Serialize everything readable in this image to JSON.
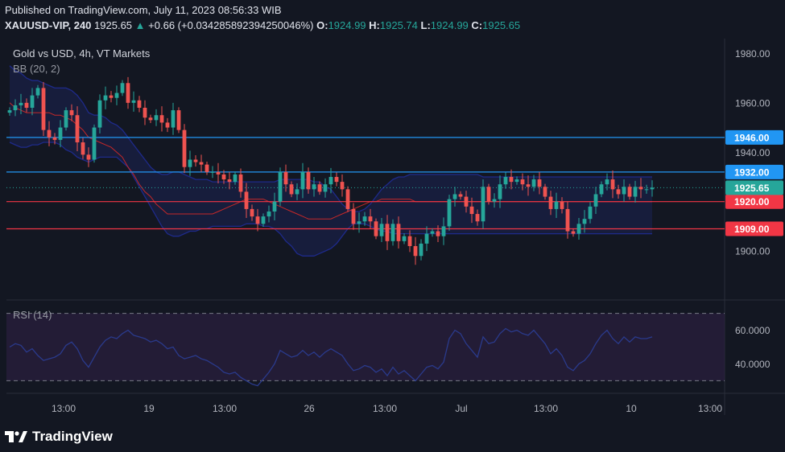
{
  "header": {
    "published": "Published on TradingView.com, July 11, 2023 08:56:33 WIB",
    "symbol": "XAUUSD-VIP, 240",
    "last": "1925.65",
    "change": "+0.66 (+0.034285892394250046%)",
    "o_label": "O:",
    "o_value": "1924.99",
    "h_label": "H:",
    "h_value": "1925.74",
    "l_label": "L:",
    "l_value": "1924.99",
    "c_label": "C:",
    "c_value": "1925.65"
  },
  "legend": {
    "title": "Gold vs USD, 4h, VT Markets",
    "bb": "BB (20, 2)",
    "rsi": "RSI (14)"
  },
  "footer": {
    "brand": "TradingView"
  },
  "colors": {
    "background": "#131722",
    "up": "#26a69a",
    "down": "#ef5350",
    "bb_band": "#1e2a8a",
    "bb_fill": "#1c2352",
    "bb_basis": "#c62828",
    "blue_line": "#2196f3",
    "red_line": "#f23645",
    "rsi_line": "#2a3a8c",
    "rsi_fill": "#2a1f3d"
  },
  "chart_data": {
    "type": "candlestick",
    "title": "Gold vs USD, 4h, VT Markets",
    "price_axis": {
      "range": [
        1880.5,
        1986
      ],
      "ticks": [
        1900,
        1920,
        1940,
        1960,
        1980
      ],
      "tick_labels": [
        "1900.00",
        "1920.00",
        "1940.00",
        "1960.00",
        "1980.00"
      ]
    },
    "time_axis": {
      "tick_labels": [
        "13:00",
        "19",
        "13:00",
        "26",
        "13:00",
        "Jul",
        "13:00",
        "10",
        "13:00"
      ]
    },
    "horizontal_levels": [
      {
        "value": 1946.0,
        "label": "1946.00",
        "color": "#2196f3"
      },
      {
        "value": 1932.0,
        "label": "1932.00",
        "color": "#2196f3"
      },
      {
        "value": 1920.0,
        "label": "1920.00",
        "color": "#f23645"
      },
      {
        "value": 1909.0,
        "label": "1909.00",
        "color": "#f23645"
      }
    ],
    "last_price": {
      "value": 1925.65,
      "label": "1925.65"
    },
    "close": [
      1957,
      1959,
      1960,
      1958,
      1963,
      1966,
      1949,
      1946,
      1945,
      1950,
      1957,
      1955,
      1944,
      1939,
      1937,
      1950,
      1961,
      1963,
      1962,
      1964,
      1968,
      1960,
      1961,
      1958,
      1954,
      1953,
      1955,
      1952,
      1950,
      1957,
      1949,
      1934,
      1937,
      1936,
      1935,
      1932,
      1932,
      1931,
      1929,
      1928,
      1931,
      1924,
      1917,
      1914,
      1911,
      1914,
      1916,
      1920,
      1932,
      1927,
      1923,
      1925,
      1932,
      1925,
      1927,
      1924,
      1927,
      1930,
      1928,
      1925,
      1917,
      1911,
      1912,
      1914,
      1912,
      1906,
      1911,
      1904,
      1911,
      1904,
      1906,
      1902,
      1898,
      1903,
      1907,
      1908,
      1906,
      1910,
      1921,
      1923,
      1922,
      1918,
      1915,
      1912,
      1926,
      1920,
      1921,
      1927,
      1930,
      1928,
      1929,
      1927,
      1926,
      1929,
      1926,
      1922,
      1917,
      1920,
      1917,
      1908,
      1907,
      1911,
      1913,
      1918,
      1923,
      1927,
      1929,
      1925,
      1923,
      1926,
      1922,
      1926,
      1925,
      1925,
      1925.65
    ],
    "bb_upper": [
      1975,
      1973,
      1972,
      1970,
      1969,
      1969,
      1968,
      1967,
      1966,
      1966,
      1966,
      1965,
      1963,
      1960,
      1956,
      1955,
      1955,
      1954,
      1952,
      1951,
      1949,
      1946,
      1943,
      1940,
      1937,
      1934,
      1932,
      1931,
      1931,
      1932,
      1932,
      1931,
      1930,
      1929,
      1929,
      1929,
      1928,
      1928,
      1928,
      1928,
      1928,
      1928,
      1928,
      1928,
      1928,
      1928,
      1928,
      1928,
      1929,
      1929,
      1929,
      1929,
      1929,
      1929,
      1928,
      1928,
      1926,
      1925,
      1922,
      1919,
      1917,
      1916,
      1916,
      1917,
      1919,
      1922,
      1925,
      1927,
      1929,
      1930,
      1930,
      1931,
      1931,
      1931,
      1931,
      1931,
      1931,
      1931,
      1931,
      1931,
      1931,
      1931,
      1931,
      1931,
      1930,
      1930,
      1930,
      1930,
      1930,
      1930,
      1930,
      1930,
      1930,
      1930,
      1930,
      1930,
      1930,
      1930,
      1930,
      1930,
      1930,
      1930,
      1930,
      1930,
      1930,
      1930,
      1930,
      1930,
      1930,
      1930,
      1930,
      1930,
      1930,
      1930,
      1930
    ],
    "bb_lower": [
      1944,
      1943,
      1942,
      1942,
      1943,
      1943,
      1944,
      1944,
      1944,
      1943,
      1941,
      1940,
      1938,
      1937,
      1936,
      1937,
      1938,
      1938,
      1938,
      1938,
      1936,
      1934,
      1930,
      1926,
      1922,
      1918,
      1914,
      1910,
      1907,
      1906,
      1906,
      1907,
      1908,
      1908,
      1909,
      1909,
      1910,
      1910,
      1910,
      1910,
      1910,
      1910,
      1911,
      1911,
      1911,
      1910,
      1910,
      1909,
      1907,
      1904,
      1902,
      1899,
      1898,
      1898,
      1898,
      1899,
      1900,
      1901,
      1903,
      1906,
      1909,
      1911,
      1911,
      1911,
      1910,
      1909,
      1908,
      1908,
      1907,
      1907,
      1907,
      1907,
      1907,
      1907,
      1907,
      1907,
      1907,
      1907,
      1907,
      1907,
      1907,
      1907,
      1907,
      1907,
      1907,
      1907,
      1907,
      1907,
      1907,
      1907,
      1907,
      1907,
      1907,
      1907,
      1907,
      1907,
      1907,
      1907,
      1907,
      1907,
      1907,
      1907,
      1907,
      1907,
      1907,
      1907,
      1907,
      1907,
      1907,
      1907,
      1907,
      1907,
      1907,
      1907,
      1907
    ],
    "bb_basis": [
      1960,
      1958,
      1957,
      1956,
      1956,
      1956,
      1956,
      1956,
      1955,
      1955,
      1954,
      1953,
      1951,
      1949,
      1946,
      1945,
      1944,
      1943,
      1942,
      1940,
      1938,
      1934,
      1931,
      1927,
      1924,
      1922,
      1919,
      1917,
      1915,
      1915,
      1915,
      1915,
      1915,
      1915,
      1915,
      1915,
      1915,
      1916,
      1917,
      1918,
      1919,
      1920,
      1921,
      1921,
      1921,
      1921,
      1920,
      1919,
      1918,
      1917,
      1916,
      1915,
      1914,
      1913,
      1913,
      1913,
      1913,
      1913,
      1914,
      1915,
      1916,
      1917,
      1918,
      1919,
      1920,
      1920,
      1921,
      1921,
      1921,
      1921,
      1921,
      1921,
      1920,
      1920,
      1920,
      1920,
      1920,
      1920,
      1920,
      1920,
      1920,
      1920,
      1920,
      1920,
      1920,
      1920,
      1920,
      1920,
      1920,
      1920,
      1920,
      1920,
      1920,
      1920,
      1920,
      1920,
      1920,
      1920,
      1920,
      1920,
      1920,
      1920,
      1920,
      1920,
      1920,
      1920,
      1920,
      1920,
      1920,
      1920,
      1920,
      1920,
      1920,
      1920,
      1920
    ],
    "rsi": {
      "name": "RSI (14)",
      "range": [
        23,
        77
      ],
      "ticks": [
        40,
        60
      ],
      "tick_labels": [
        "40.0000",
        "60.0000"
      ],
      "bands": [
        70,
        30
      ],
      "values": [
        50,
        52,
        51,
        47,
        49,
        45,
        42,
        43,
        44,
        46,
        51,
        53,
        49,
        42,
        38,
        44,
        50,
        54,
        56,
        55,
        58,
        60,
        57,
        56,
        55,
        53,
        54,
        52,
        49,
        50,
        45,
        43,
        44,
        45,
        43,
        42,
        40,
        38,
        35,
        34,
        35,
        32,
        30,
        28,
        27,
        31,
        35,
        40,
        48,
        46,
        44,
        45,
        48,
        45,
        47,
        44,
        47,
        49,
        47,
        45,
        40,
        36,
        37,
        39,
        38,
        35,
        37,
        33,
        38,
        34,
        36,
        33,
        30,
        34,
        38,
        39,
        37,
        41,
        55,
        60,
        58,
        52,
        48,
        44,
        56,
        52,
        53,
        58,
        61,
        59,
        60,
        58,
        57,
        60,
        56,
        52,
        46,
        49,
        45,
        38,
        36,
        40,
        42,
        46,
        52,
        57,
        60,
        55,
        52,
        56,
        53,
        56,
        55,
        55,
        56
      ]
    }
  }
}
